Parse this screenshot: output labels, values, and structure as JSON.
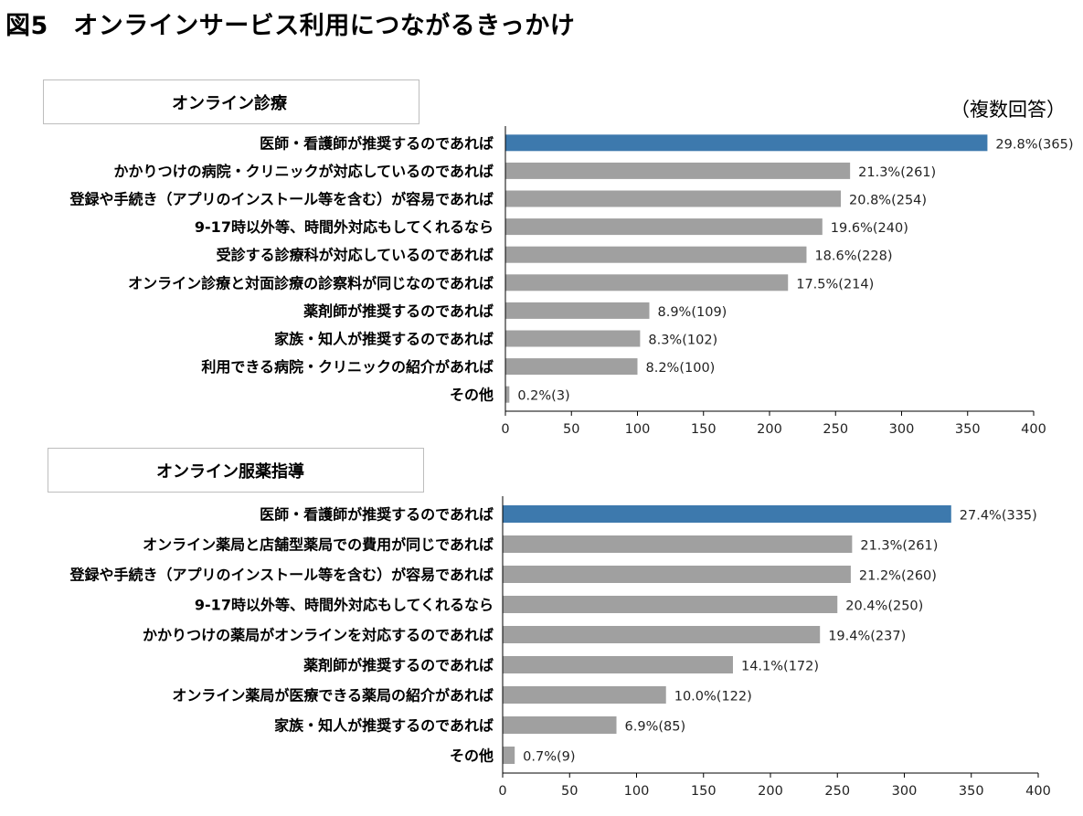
{
  "figure": {
    "title": "図5　オンラインサービス利用につながるきっかけ",
    "note": "（複数回答）"
  },
  "colors": {
    "highlight": "#3d79ad",
    "bar": "#a0a0a0",
    "axis": "#000000"
  },
  "chart_data": [
    {
      "type": "bar",
      "orientation": "horizontal",
      "title": "オンライン診療",
      "xlim": [
        0,
        400
      ],
      "xticks": [
        0,
        50,
        100,
        150,
        200,
        250,
        300,
        350,
        400
      ],
      "categories": [
        "医師・看護師が推奨するのであれば",
        "かかりつけの病院・クリニックが対応しているのであれば",
        "登録や手続き（アプリのインストール等を含む）が容易であれば",
        "9-17時以外等、時間外対応もしてくれるなら",
        "受診する診療科が対応しているのであれば",
        "オンライン診療と対面診療の診察料が同じなのであれば",
        "薬剤師が推奨するのであれば",
        "家族・知人が推奨するのであれば",
        "利用できる病院・クリニックの紹介があれば",
        "その他"
      ],
      "values": [
        365,
        261,
        254,
        240,
        228,
        214,
        109,
        102,
        100,
        3
      ],
      "labels": [
        "29.8%(365)",
        "21.3%(261)",
        "20.8%(254)",
        "19.6%(240)",
        "18.6%(228)",
        "17.5%(214)",
        "8.9%(109)",
        "8.3%(102)",
        "8.2%(100)",
        "0.2%(3)"
      ],
      "highlight_index": 0
    },
    {
      "type": "bar",
      "orientation": "horizontal",
      "title": "オンライン服薬指導",
      "xlim": [
        0,
        400
      ],
      "xticks": [
        0,
        50,
        100,
        150,
        200,
        250,
        300,
        350,
        400
      ],
      "categories": [
        "医師・看護師が推奨するのであれば",
        "オンライン薬局と店舗型薬局での費用が同じであれば",
        "登録や手続き（アプリのインストール等を含む）が容易であれば",
        "9-17時以外等、時間外対応もしてくれるなら",
        "かかりつけの薬局がオンラインを対応するのであれば",
        "薬剤師が推奨するのであれば",
        "オンライン薬局が医療できる薬局の紹介があれば",
        "家族・知人が推奨するのであれば",
        "その他"
      ],
      "values": [
        335,
        261,
        260,
        250,
        237,
        172,
        122,
        85,
        9
      ],
      "labels": [
        "27.4%(335)",
        "21.3%(261)",
        "21.2%(260)",
        "20.4%(250)",
        "19.4%(237)",
        "14.1%(172)",
        "10.0%(122)",
        "6.9%(85)",
        "0.7%(9)"
      ],
      "highlight_index": 0
    }
  ]
}
